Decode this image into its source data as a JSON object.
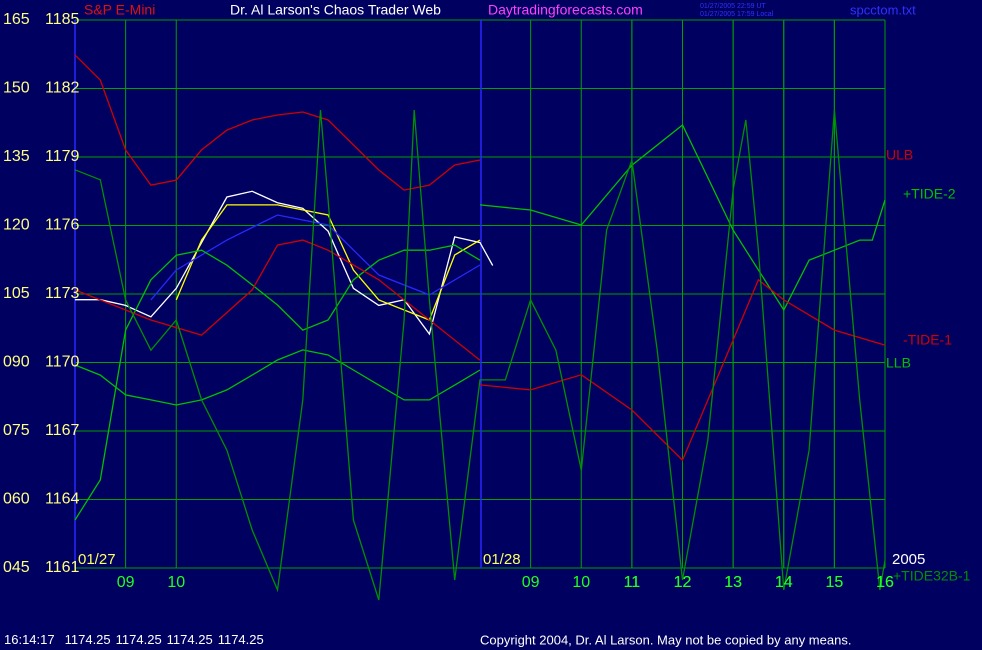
{
  "header": {
    "symbol": "S&P E-Mini",
    "title": "Dr. Al Larson's Chaos Trader Web",
    "site": "Daytradingforecasts.com",
    "stamps": [
      "01/27/2005 22:59 UT",
      "01/27/2005 17:59 Local"
    ],
    "file": "spcctom.txt"
  },
  "chart_data": {
    "type": "line",
    "date_labels": [
      "01/27",
      "01/28",
      "2005"
    ],
    "xlim": [
      0,
      16
    ],
    "xticks": [
      {
        "value": 1,
        "label": "09"
      },
      {
        "value": 2,
        "label": "10"
      },
      11,
      12,
      13,
      14,
      15,
      16,
      {
        "value": 9,
        "label": "09"
      },
      {
        "value": 10,
        "label": "10"
      },
      {
        "value": 11,
        "label": "11"
      },
      {
        "value": 12,
        "label": "12"
      },
      {
        "value": 13,
        "label": "13"
      },
      {
        "value": 14,
        "label": "14"
      },
      {
        "value": 15,
        "label": "15"
      },
      {
        "value": 16,
        "label": "16"
      }
    ],
    "ylim": [
      1161,
      1185
    ],
    "yticks": [
      1185,
      1182,
      1179,
      1176,
      1173,
      1170,
      1167,
      1164,
      1161
    ],
    "y2lim": [
      45,
      165
    ],
    "y2ticks": [
      165,
      150,
      135,
      120,
      105,
      {
        "value": 90,
        "label": "090"
      },
      {
        "value": 75,
        "label": "075"
      },
      {
        "value": 60,
        "label": "060"
      },
      {
        "value": 45,
        "label": "045"
      }
    ],
    "grid": true,
    "series": [
      {
        "color": "#ffffff",
        "x": [
          0,
          0.5,
          1,
          1.5,
          2,
          2.5,
          3,
          3.5,
          4,
          4.5,
          5,
          5.5,
          6,
          6.5,
          7,
          7.5,
          8,
          8.25
        ],
        "values": [
          1172.75,
          1172.75,
          1172.5,
          1172,
          1173.25,
          1175.25,
          1177.25,
          1177.5,
          1177,
          1176.75,
          1175.75,
          1173.25,
          1172.5,
          1172.75,
          1171.25,
          1175.5,
          1175.25,
          1174.25
        ]
      },
      {
        "color": "#ffff00",
        "x": [
          2,
          2.5,
          3,
          4,
          5,
          5.5,
          6,
          7,
          7.5,
          8
        ],
        "values": [
          1172.74,
          1175.36,
          1176.9,
          1176.9,
          1176.46,
          1174.05,
          1172.74,
          1171.86,
          1174.71,
          1175.36
        ]
      },
      {
        "color": "#2828ff",
        "x": [
          1.5,
          2,
          3,
          4,
          5,
          6,
          7,
          8
        ],
        "values": [
          1172.74,
          1174.05,
          1175.36,
          1176.46,
          1176.02,
          1173.83,
          1172.96,
          1174.27
        ]
      },
      {
        "name": "ULB",
        "color": "#d00000",
        "x": [
          0,
          0.5,
          1,
          1.5,
          2,
          2.5,
          3,
          3.5,
          4,
          4.5,
          5,
          5.5,
          6,
          6.5,
          7,
          7.5,
          8
        ],
        "values": [
          1183.47,
          1182.37,
          1179.31,
          1177.77,
          1177.99,
          1179.31,
          1180.18,
          1180.62,
          1180.84,
          1180.97,
          1180.62,
          1179.53,
          1178.43,
          1177.55,
          1177.77,
          1178.65,
          1178.87
        ]
      },
      {
        "name": "+TIDE-2",
        "color": "#00c000",
        "axis": "y2",
        "x": [
          0,
          0.5,
          1,
          1.5,
          2,
          2.5,
          3,
          3.5,
          4,
          4.5,
          5,
          5.5,
          6,
          6.5,
          7,
          7.5,
          8,
          8,
          8,
          9,
          10,
          11,
          12,
          13,
          14,
          14.5,
          15,
          15.5,
          15.75,
          16
        ],
        "values": [
          55.5,
          64.3,
          97.1,
          108.1,
          113.5,
          114.6,
          111.3,
          107,
          102.6,
          97.1,
          99.3,
          108.1,
          112.4,
          114.6,
          114.6,
          115.7,
          112.4,
          null,
          124.5,
          123.4,
          120.1,
          133.2,
          142,
          119,
          101.5,
          112.4,
          114.6,
          116.8,
          116.8,
          125.6
        ]
      },
      {
        "name": "-TIDE-1",
        "color": "#d00000",
        "axis": "y2",
        "x": [
          0,
          1.5,
          2.5,
          3.5,
          4,
          4.5,
          5,
          6,
          7,
          8,
          8,
          8,
          9,
          10,
          11,
          12,
          13,
          13.5,
          14,
          15,
          16
        ],
        "values": [
          105.9,
          99.3,
          96,
          105.9,
          115.7,
          116.8,
          114.6,
          108.1,
          99.3,
          90.5,
          null,
          85.1,
          84,
          87.3,
          79.6,
          68.6,
          94.9,
          108.1,
          103.7,
          97.1,
          93.8
        ]
      },
      {
        "name": "LLB",
        "color": "#00c000",
        "x": [
          0,
          0.5,
          1,
          1.5,
          2,
          2.5,
          3,
          3.5,
          4,
          4.5,
          5,
          5.5,
          6,
          6.5,
          7,
          7.5,
          8
        ],
        "values": [
          1169.89,
          1169.45,
          1168.58,
          1168.36,
          1168.14,
          1168.36,
          1168.8,
          1169.45,
          1170.11,
          1170.55,
          1170.33,
          1169.67,
          1169.01,
          1168.36,
          1168.36,
          1169.01,
          1169.67
        ]
      },
      {
        "name": "+TIDE32B-1",
        "color": "#009000",
        "axis": "y2",
        "x": [
          0,
          0.5,
          1,
          1.5,
          2,
          2.5,
          3,
          3.5,
          4,
          4.5,
          4.85,
          5,
          5.5,
          6,
          6.5,
          6.7,
          7,
          7.5,
          8,
          8.5,
          9,
          9.5,
          10,
          10.5,
          11,
          11.5,
          12,
          12.5,
          13,
          13.25,
          13.5,
          14,
          14.5,
          15,
          15.5,
          15.9,
          16
        ],
        "values": [
          132.2,
          130,
          103.7,
          92.7,
          99.3,
          81.8,
          70.8,
          53.3,
          40.2,
          81.8,
          145.3,
          125.6,
          55.5,
          38,
          99.3,
          145.3,
          103.7,
          42.4,
          86.2,
          86.2,
          103.7,
          92.7,
          66.4,
          119,
          134.3,
          92.7,
          42.4,
          73,
          127.8,
          143.1,
          114.6,
          40.2,
          70.8,
          145.3,
          81.8,
          40.2,
          46.7
        ]
      }
    ]
  },
  "status": {
    "time": "16:14:17",
    "quote": [
      1174.25,
      1174.25,
      1174.25,
      1174.25
    ]
  },
  "footer": {
    "copyright": "Copyright 2004, Dr. Al Larson. May not be copied by any means."
  }
}
